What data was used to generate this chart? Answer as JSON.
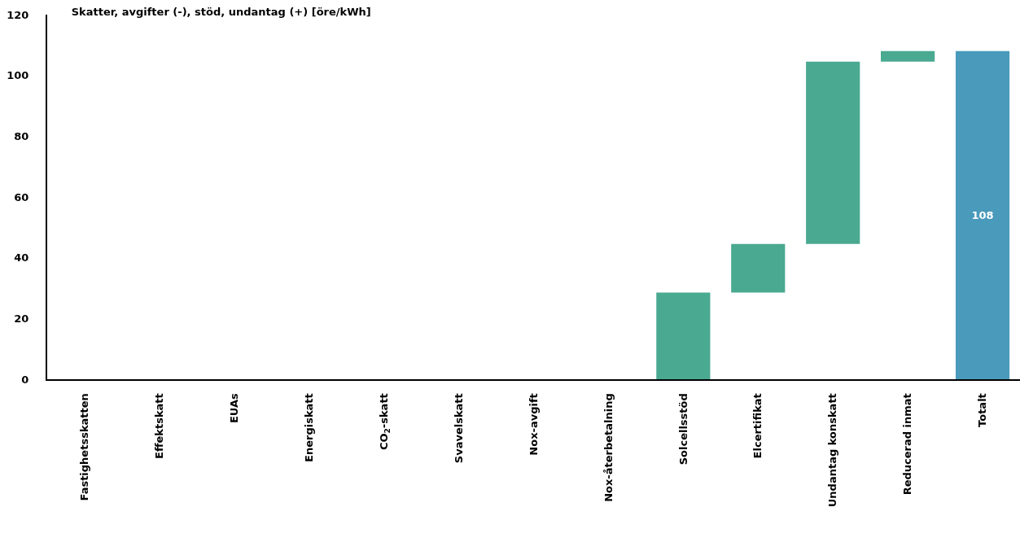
{
  "chart_data": {
    "type": "bar",
    "title": "Skatter, avgifter (-), stöd, undantag (+) [öre/kWh]",
    "categories": [
      "Fastighetsskatten",
      "Effektskatt",
      "EUAs",
      "Energiskatt",
      "CO$_{2}$-skatt",
      "Svavelskatt",
      "Nox-avgift",
      "Nox-återbetalning",
      "Solcellsstöd",
      "Elcertifikat",
      "Undantag konskatt",
      "Reducerad inmat",
      "Totalt"
    ],
    "values": [
      0,
      0,
      0,
      0,
      0,
      0,
      0,
      0,
      28.5,
      16,
      60,
      3.5,
      108
    ],
    "base": [
      null,
      null,
      null,
      null,
      null,
      null,
      null,
      null,
      0,
      28.5,
      44.5,
      104.5,
      0
    ],
    "colors": [
      "#4aa991",
      "#4aa991",
      "#4aa991",
      "#4aa991",
      "#4aa991",
      "#4aa991",
      "#4aa991",
      "#4aa991",
      "#4aa991",
      "#4aa991",
      "#4aa991",
      "#4aa991",
      "#4a9abb"
    ],
    "value_labels": [
      null,
      null,
      null,
      null,
      null,
      null,
      null,
      null,
      null,
      null,
      null,
      null,
      "108"
    ],
    "ylim": [
      0,
      120
    ],
    "yticks": [
      0,
      20,
      40,
      60,
      80,
      100,
      120
    ],
    "grid": false
  }
}
